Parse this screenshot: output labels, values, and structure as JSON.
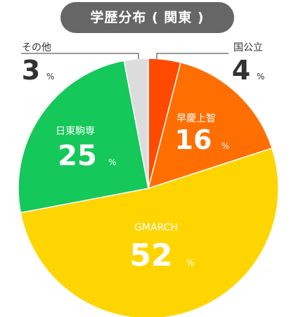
{
  "chart_data": {
    "type": "pie",
    "title": "学歴分布 ( 関東 )",
    "unit": "%",
    "slices": [
      {
        "label": "国公立",
        "value": 4,
        "color": "#FF4A00"
      },
      {
        "label": "早慶上智",
        "value": 16,
        "color": "#FF6E00"
      },
      {
        "label": "GMARCH",
        "value": 52,
        "color": "#FFD500"
      },
      {
        "label": "日東駒専",
        "value": 25,
        "color": "#14C85A"
      },
      {
        "label": "その他",
        "value": 3,
        "color": "#DCDCDC"
      }
    ]
  }
}
